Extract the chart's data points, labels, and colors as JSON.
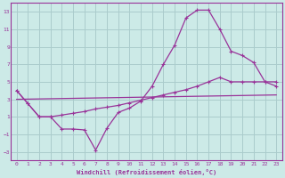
{
  "xlabel": "Windchill (Refroidissement éolien,°C)",
  "background_color": "#cceae7",
  "grid_color": "#aacccc",
  "line_color": "#993399",
  "xlim": [
    -0.5,
    23.5
  ],
  "ylim": [
    -4,
    14
  ],
  "xticks": [
    0,
    1,
    2,
    3,
    4,
    5,
    6,
    7,
    8,
    9,
    10,
    11,
    12,
    13,
    14,
    15,
    16,
    17,
    18,
    19,
    20,
    21,
    22,
    23
  ],
  "yticks": [
    -3,
    -1,
    1,
    3,
    5,
    7,
    9,
    11,
    13
  ],
  "curve1_x": [
    0,
    1,
    2,
    3,
    4,
    5,
    6,
    7,
    8,
    9,
    10,
    11,
    12,
    13,
    14,
    15,
    16,
    17,
    18,
    19,
    20,
    21,
    22,
    23
  ],
  "curve1_y": [
    4.0,
    2.5,
    1.0,
    1.0,
    -0.4,
    -0.4,
    -0.5,
    -2.8,
    -0.3,
    1.5,
    2.0,
    2.8,
    4.5,
    7.0,
    9.2,
    12.3,
    13.2,
    13.2,
    11.0,
    8.5,
    8.0,
    7.2,
    5.0,
    5.0
  ],
  "curve2_x": [
    0,
    23
  ],
  "curve2_y": [
    3.5,
    3.5
  ],
  "curve3_x": [
    0,
    1,
    2,
    3,
    4,
    5,
    6,
    7,
    8,
    9,
    10,
    11,
    12,
    13,
    14,
    15,
    16,
    17,
    18,
    19,
    20,
    21,
    22,
    23
  ],
  "curve3_y": [
    4.0,
    2.5,
    1.0,
    1.0,
    1.2,
    1.4,
    1.6,
    1.9,
    2.1,
    2.3,
    2.6,
    2.9,
    3.2,
    3.5,
    3.8,
    4.1,
    4.5,
    5.0,
    5.5,
    5.0,
    5.0,
    5.0,
    5.0,
    4.5
  ]
}
